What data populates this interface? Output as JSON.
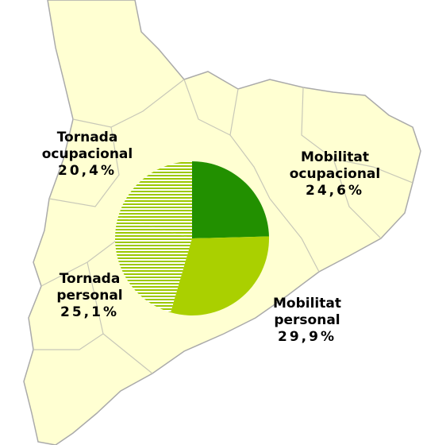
{
  "chart_data": {
    "type": "pie",
    "categories": [
      "Mobilitat ocupacional",
      "Mobilitat personal",
      "Tornada personal",
      "Tornada ocupacional"
    ],
    "values": [
      24.6,
      29.9,
      25.1,
      20.4
    ],
    "value_labels": [
      "24,6%",
      "29,9%",
      "25,1%",
      "20,4%"
    ],
    "colors": [
      "#229000",
      "#aad000",
      "striped",
      "striped"
    ]
  }
}
